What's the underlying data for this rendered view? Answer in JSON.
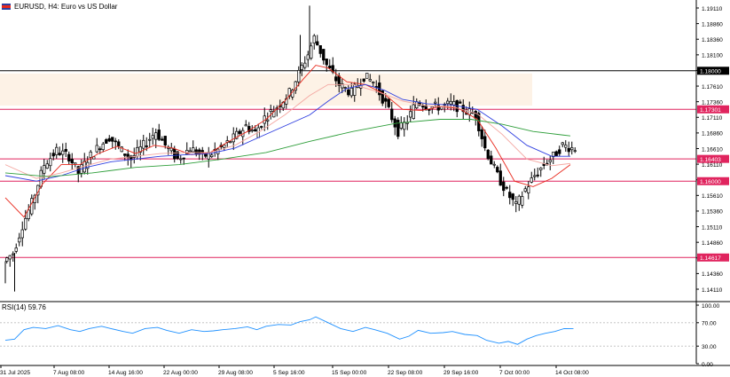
{
  "header": {
    "title": "EURUSD, H4:  Euro vs US Dollar"
  },
  "rsi": {
    "label": "RSI(14) 59.76",
    "color": "#1e90ff"
  },
  "colors": {
    "zone_fill": "#fdf2e6",
    "hline": "#e0245e",
    "black_line": "#000000",
    "ma_red": "#e8281c",
    "ma_salmon": "#f4a6a0",
    "ma_blue": "#2f3fe0",
    "ma_green": "#2e9e3a",
    "candle": "#000000",
    "grid": "#d9d9d9"
  },
  "chart_data": [
    {
      "type": "candlestick",
      "title": "EURUSD, H4:  Euro vs US Dollar",
      "y_tick_labels": [
        "1.19110",
        "1.18860",
        "1.18360",
        "1.18100",
        "1.17960",
        "1.17610",
        "1.17360",
        "1.17110",
        "1.16860",
        "1.16610",
        "1.16110",
        "1.15860",
        "1.15610",
        "1.15360",
        "1.15110",
        "1.14860",
        "1.14610",
        "1.14360",
        "1.14110"
      ],
      "x_tick_labels": [
        "31 Jul 2025",
        "7 Aug 08:00",
        "14 Aug 16:00",
        "22 Aug 00:00",
        "29 Aug 08:00",
        "5 Sep 16:00",
        "15 Sep 00:00",
        "22 Sep 08:00",
        "29 Sep 16:00",
        "7 Oct 00:00",
        "14 Oct 08:00"
      ],
      "ylim": [
        1.1385,
        1.1925
      ],
      "zone": {
        "from": 1.1737,
        "to": 1.1795
      },
      "black_level": 1.18,
      "lines": [
        {
          "level": 1.17301,
          "label": "1.17301"
        },
        {
          "level": 1.16403,
          "label": "1.16403"
        },
        {
          "level": 1.16,
          "label": "1.16000"
        },
        {
          "level": 1.14617,
          "label": "1.14617"
        }
      ],
      "black_level_label": "1.18000",
      "close_path": [
        [
          0,
          1.1455
        ],
        [
          3,
          1.147
        ],
        [
          6,
          1.152
        ],
        [
          9,
          1.156
        ],
        [
          13,
          1.163
        ],
        [
          17,
          1.1655
        ],
        [
          21,
          1.1645
        ],
        [
          24,
          1.1615
        ],
        [
          27,
          1.164
        ],
        [
          31,
          1.1665
        ],
        [
          34,
          1.168
        ],
        [
          38,
          1.1655
        ],
        [
          41,
          1.164
        ],
        [
          45,
          1.1665
        ],
        [
          49,
          1.169
        ],
        [
          52,
          1.1665
        ],
        [
          56,
          1.164
        ],
        [
          60,
          1.166
        ],
        [
          64,
          1.1645
        ],
        [
          67,
          1.165
        ],
        [
          70,
          1.166
        ],
        [
          74,
          1.1678
        ],
        [
          78,
          1.17
        ],
        [
          81,
          1.1688
        ],
        [
          84,
          1.1715
        ],
        [
          88,
          1.1735
        ],
        [
          92,
          1.176
        ],
        [
          95,
          1.1795
        ],
        [
          98,
          1.183
        ],
        [
          100,
          1.186
        ],
        [
          104,
          1.181
        ],
        [
          108,
          1.1775
        ],
        [
          112,
          1.176
        ],
        [
          116,
          1.179
        ],
        [
          119,
          1.178
        ],
        [
          123,
          1.174
        ],
        [
          127,
          1.169
        ],
        [
          130,
          1.171
        ],
        [
          133,
          1.1745
        ],
        [
          137,
          1.1735
        ],
        [
          141,
          1.1735
        ],
        [
          144,
          1.174
        ],
        [
          148,
          1.173
        ],
        [
          152,
          1.172
        ],
        [
          155,
          1.166
        ],
        [
          159,
          1.161
        ],
        [
          162,
          1.158
        ],
        [
          165,
          1.1555
        ],
        [
          168,
          1.1585
        ],
        [
          171,
          1.161
        ],
        [
          174,
          1.163
        ],
        [
          177,
          1.1645
        ],
        [
          180,
          1.1665
        ],
        [
          183,
          1.166
        ]
      ],
      "moving_averages": [
        {
          "name": "",
          "color": "#e8281c",
          "path": [
            [
              0,
              1.157
            ],
            [
              6,
              1.1535
            ],
            [
              12,
              1.1595
            ],
            [
              18,
              1.163
            ],
            [
              24,
              1.163
            ],
            [
              30,
              1.165
            ],
            [
              36,
              1.1663
            ],
            [
              42,
              1.165
            ],
            [
              48,
              1.1665
            ],
            [
              54,
              1.166
            ],
            [
              60,
              1.1648
            ],
            [
              66,
              1.1652
            ],
            [
              72,
              1.1672
            ],
            [
              78,
              1.169
            ],
            [
              84,
              1.1712
            ],
            [
              90,
              1.1745
            ],
            [
              96,
              1.1785
            ],
            [
              100,
              1.181
            ],
            [
              104,
              1.1805
            ],
            [
              110,
              1.178
            ],
            [
              116,
              1.1775
            ],
            [
              122,
              1.1758
            ],
            [
              128,
              1.173
            ],
            [
              134,
              1.1728
            ],
            [
              140,
              1.1735
            ],
            [
              146,
              1.1732
            ],
            [
              152,
              1.1712
            ],
            [
              158,
              1.166
            ],
            [
              164,
              1.16
            ],
            [
              170,
              1.159
            ],
            [
              176,
              1.1605
            ],
            [
              182,
              1.163
            ]
          ]
        },
        {
          "name": "",
          "color": "#f4a6a0",
          "path": [
            [
              0,
              1.163
            ],
            [
              10,
              1.1605
            ],
            [
              18,
              1.1615
            ],
            [
              26,
              1.1628
            ],
            [
              34,
              1.164
            ],
            [
              42,
              1.1645
            ],
            [
              50,
              1.165
            ],
            [
              58,
              1.1652
            ],
            [
              66,
              1.1652
            ],
            [
              74,
              1.1665
            ],
            [
              82,
              1.169
            ],
            [
              90,
              1.172
            ],
            [
              98,
              1.1755
            ],
            [
              104,
              1.1775
            ],
            [
              112,
              1.1775
            ],
            [
              120,
              1.1762
            ],
            [
              128,
              1.1745
            ],
            [
              136,
              1.1736
            ],
            [
              144,
              1.1735
            ],
            [
              152,
              1.1722
            ],
            [
              160,
              1.1685
            ],
            [
              168,
              1.164
            ],
            [
              176,
              1.1628
            ],
            [
              182,
              1.1632
            ]
          ]
        },
        {
          "name": "",
          "color": "#2f3fe0",
          "path": [
            [
              0,
              1.161
            ],
            [
              10,
              1.16
            ],
            [
              18,
              1.161
            ],
            [
              26,
              1.1625
            ],
            [
              34,
              1.1635
            ],
            [
              42,
              1.164
            ],
            [
              50,
              1.1645
            ],
            [
              58,
              1.1648
            ],
            [
              66,
              1.165
            ],
            [
              74,
              1.166
            ],
            [
              82,
              1.168
            ],
            [
              90,
              1.17
            ],
            [
              98,
              1.172
            ],
            [
              104,
              1.1745
            ],
            [
              110,
              1.1768
            ],
            [
              116,
              1.1775
            ],
            [
              122,
              1.1765
            ],
            [
              128,
              1.1748
            ],
            [
              136,
              1.174
            ],
            [
              144,
              1.1738
            ],
            [
              152,
              1.173
            ],
            [
              160,
              1.17
            ],
            [
              168,
              1.1665
            ],
            [
              176,
              1.1645
            ],
            [
              182,
              1.1645
            ]
          ]
        },
        {
          "name": "",
          "color": "#2e9e3a",
          "path": [
            [
              0,
              1.1615
            ],
            [
              14,
              1.1608
            ],
            [
              28,
              1.1615
            ],
            [
              42,
              1.1625
            ],
            [
              56,
              1.163
            ],
            [
              70,
              1.164
            ],
            [
              84,
              1.1652
            ],
            [
              98,
              1.1672
            ],
            [
              112,
              1.169
            ],
            [
              126,
              1.1705
            ],
            [
              140,
              1.1712
            ],
            [
              150,
              1.1712
            ],
            [
              160,
              1.1703
            ],
            [
              170,
              1.169
            ],
            [
              182,
              1.1682
            ]
          ]
        }
      ],
      "rsi": {
        "name": "RSI(14)",
        "last": 59.76,
        "ylim": [
          0,
          100
        ],
        "levels": [
          30,
          70
        ],
        "y_tick_labels": [
          "100.00",
          "70.00",
          "30.00",
          "0.00"
        ],
        "path": [
          [
            0,
            40
          ],
          [
            3,
            42
          ],
          [
            6,
            58
          ],
          [
            9,
            62
          ],
          [
            13,
            60
          ],
          [
            17,
            65
          ],
          [
            21,
            58
          ],
          [
            24,
            55
          ],
          [
            27,
            60
          ],
          [
            31,
            64
          ],
          [
            34,
            60
          ],
          [
            38,
            55
          ],
          [
            41,
            52
          ],
          [
            45,
            60
          ],
          [
            49,
            62
          ],
          [
            52,
            57
          ],
          [
            56,
            52
          ],
          [
            60,
            58
          ],
          [
            64,
            55
          ],
          [
            67,
            56
          ],
          [
            70,
            58
          ],
          [
            74,
            60
          ],
          [
            78,
            63
          ],
          [
            81,
            58
          ],
          [
            84,
            64
          ],
          [
            88,
            67
          ],
          [
            92,
            66
          ],
          [
            95,
            72
          ],
          [
            98,
            75
          ],
          [
            100,
            80
          ],
          [
            104,
            70
          ],
          [
            108,
            60
          ],
          [
            112,
            55
          ],
          [
            116,
            62
          ],
          [
            119,
            58
          ],
          [
            123,
            52
          ],
          [
            127,
            42
          ],
          [
            130,
            47
          ],
          [
            133,
            57
          ],
          [
            137,
            52
          ],
          [
            141,
            53
          ],
          [
            144,
            55
          ],
          [
            148,
            50
          ],
          [
            152,
            48
          ],
          [
            155,
            40
          ],
          [
            159,
            35
          ],
          [
            162,
            38
          ],
          [
            165,
            33
          ],
          [
            168,
            42
          ],
          [
            171,
            48
          ],
          [
            174,
            52
          ],
          [
            177,
            55
          ],
          [
            180,
            60
          ],
          [
            183,
            59.76
          ]
        ]
      }
    }
  ]
}
